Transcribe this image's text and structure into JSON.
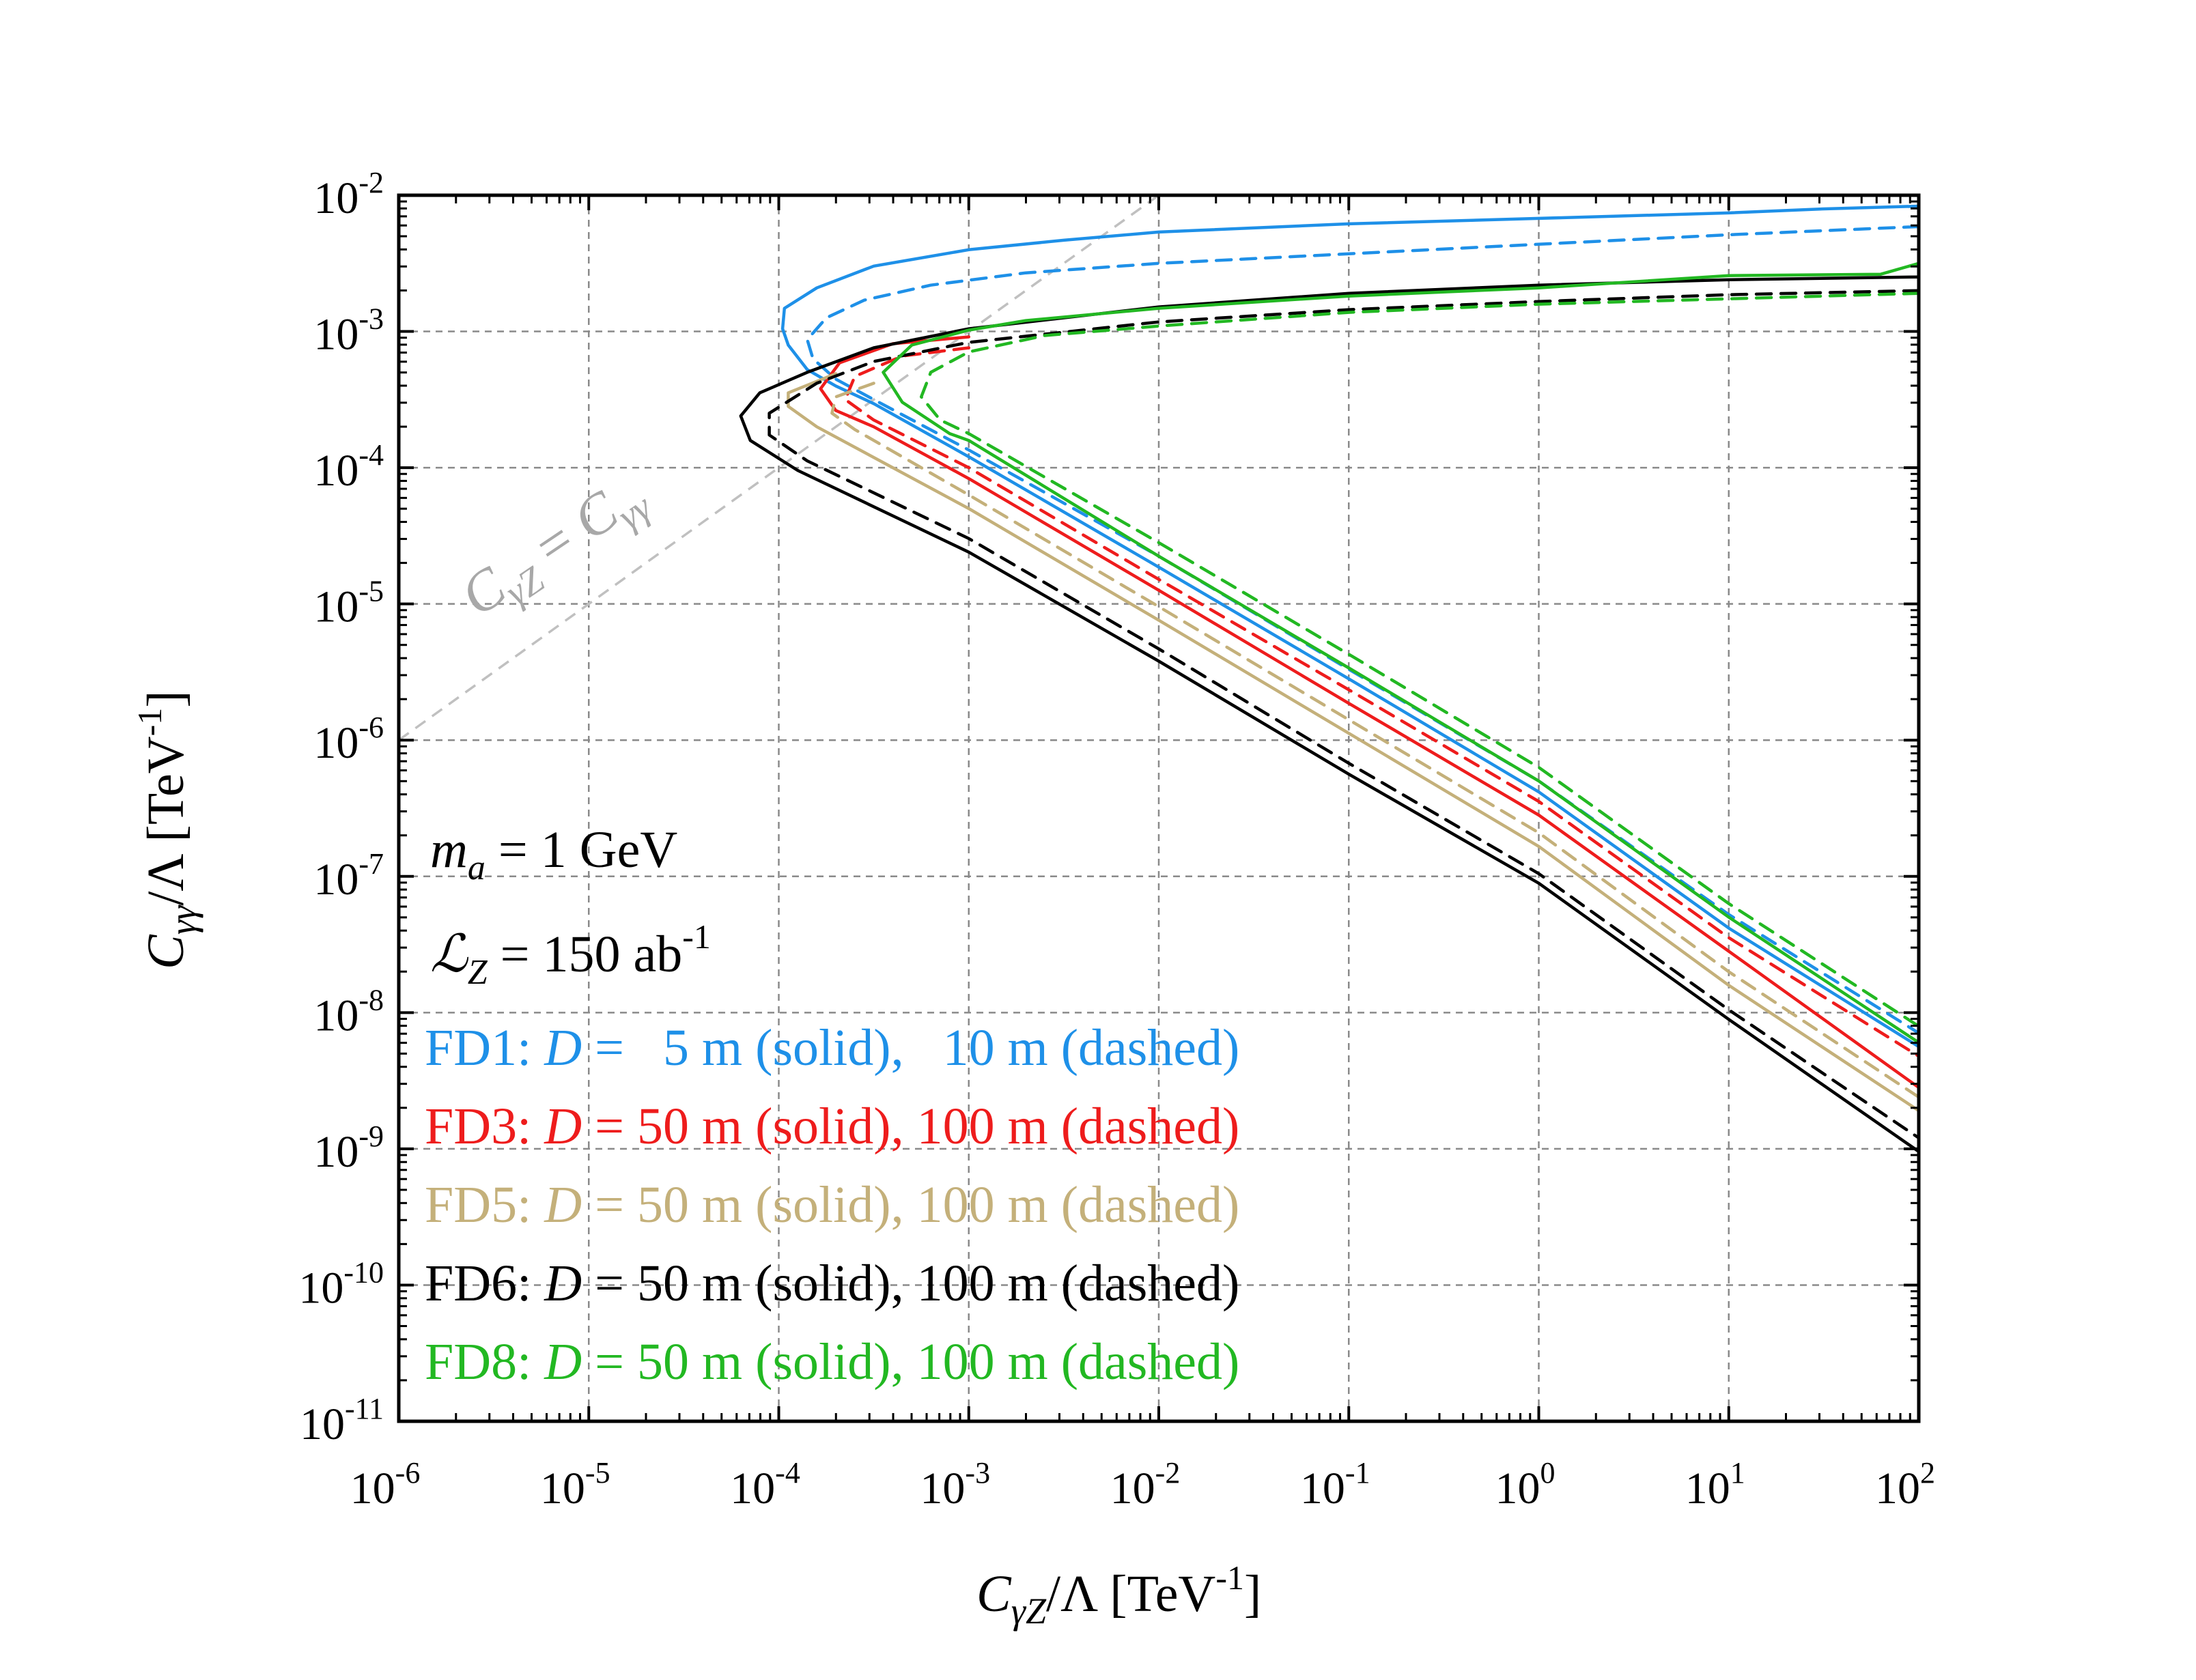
{
  "chart_data": {
    "type": "line",
    "title": "",
    "xlabel": "C_γZ/Λ [TeV^-1]",
    "ylabel": "C_γγ/Λ [TeV^-1]",
    "xscale": "log",
    "yscale": "log",
    "xlim": [
      1e-06,
      100
    ],
    "ylim": [
      1e-11,
      0.01
    ],
    "grid": true,
    "x_ticks": [
      {
        "base": "10",
        "exp": "-6",
        "value": -6
      },
      {
        "base": "10",
        "exp": "-5",
        "value": -5
      },
      {
        "base": "10",
        "exp": "-4",
        "value": -4
      },
      {
        "base": "10",
        "exp": "-3",
        "value": -3
      },
      {
        "base": "10",
        "exp": "-2",
        "value": -2
      },
      {
        "base": "10",
        "exp": "-1",
        "value": -1
      },
      {
        "base": "10",
        "exp": "0",
        "value": 0
      },
      {
        "base": "10",
        "exp": "1",
        "value": 1
      },
      {
        "base": "10",
        "exp": "2",
        "value": 2
      }
    ],
    "y_ticks": [
      {
        "base": "10",
        "exp": "-2",
        "value": -2
      },
      {
        "base": "10",
        "exp": "-3",
        "value": -3
      },
      {
        "base": "10",
        "exp": "-4",
        "value": -4
      },
      {
        "base": "10",
        "exp": "-5",
        "value": -5
      },
      {
        "base": "10",
        "exp": "-6",
        "value": -6
      },
      {
        "base": "10",
        "exp": "-7",
        "value": -7
      },
      {
        "base": "10",
        "exp": "-8",
        "value": -8
      },
      {
        "base": "10",
        "exp": "-9",
        "value": -9
      },
      {
        "base": "10",
        "exp": "-10",
        "value": -10
      },
      {
        "base": "10",
        "exp": "-11",
        "value": -11
      }
    ],
    "reference_line": {
      "label": "C_γZ = C_γγ",
      "color": "#c0c0c0",
      "points_log10": [
        [
          -6,
          -6
        ],
        [
          -2,
          -2
        ]
      ]
    },
    "annotations": {
      "mass": {
        "var": "m",
        "sub": "a",
        "rest": " = 1 GeV"
      },
      "lumi": {
        "var": "ℒ",
        "sub": "Z",
        "rest": " = 150 ab",
        "sup": "-1"
      }
    },
    "series_meta": [
      {
        "id": "FD1",
        "color": "#1e90e8",
        "prefix": "FD1: ",
        "d": "D",
        "rest": " =   5 m (solid),   10 m (dashed)"
      },
      {
        "id": "FD3",
        "color": "#ee1c1c",
        "prefix": "FD3: ",
        "d": "D",
        "rest": " = 50 m (solid), 100 m (dashed)"
      },
      {
        "id": "FD5",
        "color": "#c4b07a",
        "prefix": "FD5: ",
        "d": "D",
        "rest": " = 50 m (solid), 100 m (dashed)"
      },
      {
        "id": "FD6",
        "color": "#000000",
        "prefix": "FD6: ",
        "d": "D",
        "rest": " = 50 m (solid), 100 m (dashed)"
      },
      {
        "id": "FD8",
        "color": "#22b822",
        "prefix": "FD8: ",
        "d": "D",
        "rest": " = 50 m (solid), 100 m (dashed)"
      }
    ],
    "series": [
      {
        "name": "FD1 5 m",
        "color": "#1e90e8",
        "dash": false,
        "points_log10": [
          [
            2,
            -2.08
          ],
          [
            1.5,
            -2.1
          ],
          [
            1,
            -2.13
          ],
          [
            0,
            -2.17
          ],
          [
            -1,
            -2.21
          ],
          [
            -2,
            -2.27
          ],
          [
            -2.5,
            -2.33
          ],
          [
            -3,
            -2.4
          ],
          [
            -3.5,
            -2.52
          ],
          [
            -3.8,
            -2.68
          ],
          [
            -3.97,
            -2.83
          ],
          [
            -3.98,
            -2.98
          ],
          [
            -3.95,
            -3.1
          ],
          [
            -3.85,
            -3.28
          ],
          [
            -3.7,
            -3.4
          ],
          [
            -3.5,
            -3.53
          ],
          [
            -3,
            -3.92
          ],
          [
            -2,
            -4.73
          ],
          [
            -1,
            -5.55
          ],
          [
            0,
            -6.38
          ],
          [
            1,
            -7.38
          ],
          [
            2,
            -8.25
          ]
        ]
      },
      {
        "name": "FD1 10 m",
        "color": "#1e90e8",
        "dash": true,
        "points_log10": [
          [
            2,
            -2.23
          ],
          [
            1,
            -2.29
          ],
          [
            0,
            -2.36
          ],
          [
            -1,
            -2.43
          ],
          [
            -2,
            -2.5
          ],
          [
            -2.7,
            -2.57
          ],
          [
            -3.2,
            -2.66
          ],
          [
            -3.55,
            -2.77
          ],
          [
            -3.75,
            -2.9
          ],
          [
            -3.85,
            -3.06
          ],
          [
            -3.82,
            -3.2
          ],
          [
            -3.7,
            -3.35
          ],
          [
            -3.5,
            -3.5
          ],
          [
            -3,
            -3.87
          ],
          [
            -2,
            -4.65
          ],
          [
            -1,
            -5.48
          ],
          [
            0,
            -6.3
          ],
          [
            1,
            -7.28
          ],
          [
            2,
            -8.15
          ]
        ]
      },
      {
        "name": "FD3 50 m",
        "color": "#ee1c1c",
        "dash": false,
        "points_log10": [
          [
            -3,
            -3.04
          ],
          [
            -3.4,
            -3.09
          ],
          [
            -3.68,
            -3.23
          ],
          [
            -3.78,
            -3.42
          ],
          [
            -3.7,
            -3.58
          ],
          [
            -3.5,
            -3.7
          ],
          [
            -3,
            -4.08
          ],
          [
            -2,
            -4.9
          ],
          [
            -1,
            -5.73
          ],
          [
            0,
            -6.55
          ],
          [
            1,
            -7.55
          ],
          [
            2,
            -8.55
          ]
        ]
      },
      {
        "name": "FD3 100 m",
        "color": "#ee1c1c",
        "dash": true,
        "points_log10": [
          [
            -3,
            -3.12
          ],
          [
            -3.35,
            -3.18
          ],
          [
            -3.6,
            -3.33
          ],
          [
            -3.65,
            -3.5
          ],
          [
            -3.5,
            -3.65
          ],
          [
            -3,
            -4.0
          ],
          [
            -2,
            -4.82
          ],
          [
            -1,
            -5.63
          ],
          [
            0,
            -6.45
          ],
          [
            1,
            -7.45
          ],
          [
            2,
            -8.32
          ]
        ]
      },
      {
        "name": "FD5 50 m",
        "color": "#c4b07a",
        "dash": false,
        "points_log10": [
          [
            -3.7,
            -3.31
          ],
          [
            -3.95,
            -3.45
          ],
          [
            -3.95,
            -3.55
          ],
          [
            -3.8,
            -3.7
          ],
          [
            -3,
            -4.3
          ],
          [
            -2,
            -5.12
          ],
          [
            -1,
            -5.95
          ],
          [
            0,
            -6.78
          ],
          [
            1,
            -7.8
          ],
          [
            2,
            -8.72
          ]
        ]
      },
      {
        "name": "FD5 100 m",
        "color": "#c4b07a",
        "dash": true,
        "points_log10": [
          [
            -3.5,
            -3.38
          ],
          [
            -3.7,
            -3.48
          ],
          [
            -3.72,
            -3.6
          ],
          [
            -3.6,
            -3.72
          ],
          [
            -3,
            -4.2
          ],
          [
            -2,
            -5.02
          ],
          [
            -1,
            -5.85
          ],
          [
            0,
            -6.68
          ],
          [
            1,
            -7.7
          ],
          [
            2,
            -8.62
          ]
        ]
      },
      {
        "name": "FD6 50 m",
        "color": "#000000",
        "dash": false,
        "points_log10": [
          [
            2,
            -2.6
          ],
          [
            1,
            -2.62
          ],
          [
            0,
            -2.66
          ],
          [
            -1,
            -2.72
          ],
          [
            -2,
            -2.82
          ],
          [
            -3,
            -2.98
          ],
          [
            -3.5,
            -3.12
          ],
          [
            -3.85,
            -3.3
          ],
          [
            -4.1,
            -3.45
          ],
          [
            -4.2,
            -3.62
          ],
          [
            -4.15,
            -3.8
          ],
          [
            -3.9,
            -4.02
          ],
          [
            -3,
            -4.62
          ],
          [
            -2,
            -5.42
          ],
          [
            -1,
            -6.25
          ],
          [
            0,
            -7.05
          ],
          [
            1,
            -8.05
          ],
          [
            2,
            -9.02
          ]
        ]
      },
      {
        "name": "FD6 100 m",
        "color": "#000000",
        "dash": true,
        "points_log10": [
          [
            2,
            -2.7
          ],
          [
            1,
            -2.73
          ],
          [
            0,
            -2.78
          ],
          [
            -1,
            -2.84
          ],
          [
            -2,
            -2.93
          ],
          [
            -3,
            -3.08
          ],
          [
            -3.5,
            -3.22
          ],
          [
            -3.8,
            -3.38
          ],
          [
            -4.05,
            -3.6
          ],
          [
            -4.05,
            -3.76
          ],
          [
            -3.85,
            -3.95
          ],
          [
            -3,
            -4.52
          ],
          [
            -2,
            -5.33
          ],
          [
            -1,
            -6.17
          ],
          [
            0,
            -6.98
          ],
          [
            1,
            -7.98
          ],
          [
            2,
            -8.92
          ]
        ]
      },
      {
        "name": "FD8 50 m",
        "color": "#22b822",
        "dash": false,
        "points_log10": [
          [
            2,
            -2.5
          ],
          [
            1.8,
            -2.58
          ],
          [
            1,
            -2.59
          ],
          [
            0,
            -2.68
          ],
          [
            -1,
            -2.74
          ],
          [
            -2,
            -2.83
          ],
          [
            -2.7,
            -2.92
          ],
          [
            -3,
            -2.99
          ],
          [
            -3.3,
            -3.1
          ],
          [
            -3.45,
            -3.3
          ],
          [
            -3.35,
            -3.52
          ],
          [
            -3.1,
            -3.75
          ],
          [
            -3,
            -3.8
          ],
          [
            -2,
            -4.65
          ],
          [
            -1,
            -5.47
          ],
          [
            0,
            -6.3
          ],
          [
            1,
            -7.3
          ],
          [
            2,
            -8.22
          ]
        ]
      },
      {
        "name": "FD8 100 m",
        "color": "#22b822",
        "dash": true,
        "points_log10": [
          [
            2,
            -2.72
          ],
          [
            1,
            -2.76
          ],
          [
            0,
            -2.8
          ],
          [
            -1,
            -2.86
          ],
          [
            -2,
            -2.96
          ],
          [
            -2.6,
            -3.03
          ],
          [
            -3,
            -3.15
          ],
          [
            -3.2,
            -3.3
          ],
          [
            -3.25,
            -3.48
          ],
          [
            -3.15,
            -3.65
          ],
          [
            -3,
            -3.75
          ],
          [
            -2,
            -4.55
          ],
          [
            -1,
            -5.37
          ],
          [
            0,
            -6.2
          ],
          [
            1,
            -7.2
          ],
          [
            2,
            -8.1
          ]
        ]
      }
    ]
  }
}
